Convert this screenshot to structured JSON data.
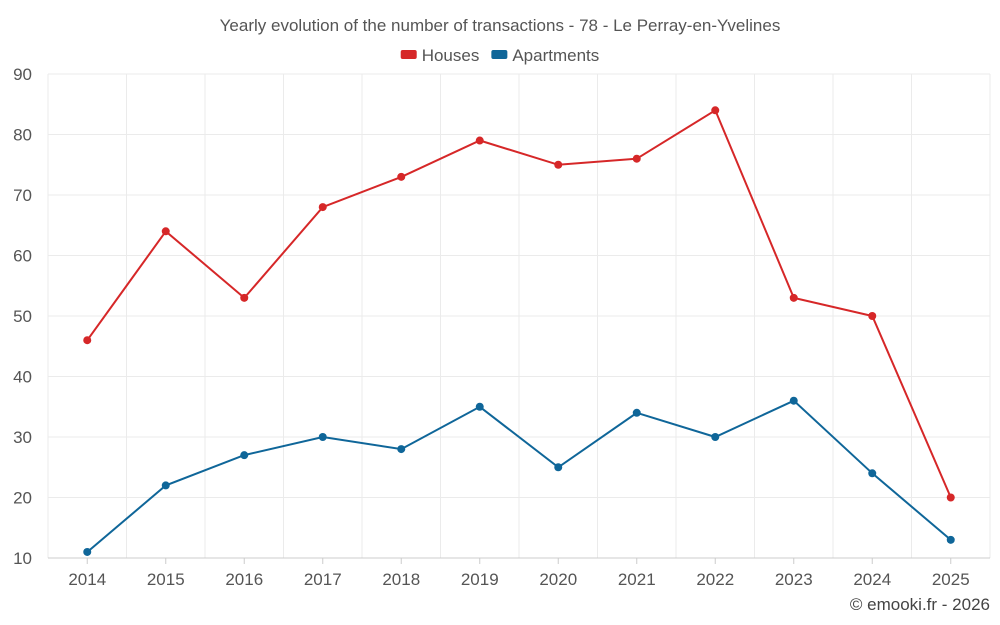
{
  "chart_data": {
    "type": "line",
    "title": "Yearly evolution of the number of transactions - 78 - Le Perray-en-Yvelines",
    "x": [
      "2014",
      "2015",
      "2016",
      "2017",
      "2018",
      "2019",
      "2020",
      "2021",
      "2022",
      "2023",
      "2024",
      "2025"
    ],
    "series": [
      {
        "name": "Houses",
        "color": "#d62728",
        "values": [
          46,
          64,
          53,
          68,
          73,
          79,
          75,
          76,
          84,
          53,
          50,
          20
        ]
      },
      {
        "name": "Apartments",
        "color": "#0f6699",
        "values": [
          11,
          22,
          27,
          30,
          28,
          35,
          25,
          34,
          30,
          36,
          24,
          13
        ]
      }
    ],
    "ylim": [
      10,
      90
    ],
    "yticks": [
      "10",
      "20",
      "30",
      "40",
      "50",
      "60",
      "70",
      "80",
      "90"
    ],
    "xlabel": "",
    "ylabel": "",
    "legend": "top",
    "grid": true
  },
  "credit": "© emooki.fr - 2026"
}
